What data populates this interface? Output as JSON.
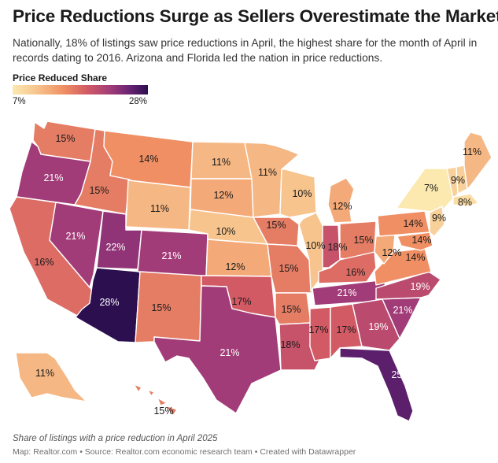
{
  "title": "Price Reductions Surge as Sellers Overestimate the Market",
  "subtitle": "Nationally, 18% of listings saw price reductions in April, the highest share for the month of April in records dating to 2016. Arizona and Florida led the nation in price reductions.",
  "legend": {
    "title": "Price Reduced Share",
    "min_label": "7%",
    "max_label": "28%",
    "min": 7,
    "max": 28
  },
  "states": [
    {
      "name": "WA",
      "label": "15%",
      "value": 15
    },
    {
      "name": "OR",
      "label": "21%",
      "value": 21
    },
    {
      "name": "CA",
      "label": "16%",
      "value": 16
    },
    {
      "name": "ID",
      "label": "15%",
      "value": 15
    },
    {
      "name": "NV",
      "label": "21%",
      "value": 21
    },
    {
      "name": "UT",
      "label": "22%",
      "value": 22
    },
    {
      "name": "AZ",
      "label": "28%",
      "value": 28
    },
    {
      "name": "MT",
      "label": "14%",
      "value": 14
    },
    {
      "name": "WY",
      "label": "11%",
      "value": 11
    },
    {
      "name": "CO",
      "label": "21%",
      "value": 21
    },
    {
      "name": "NM",
      "label": "15%",
      "value": 15
    },
    {
      "name": "ND",
      "label": "11%",
      "value": 11
    },
    {
      "name": "SD",
      "label": "12%",
      "value": 12
    },
    {
      "name": "NE",
      "label": "10%",
      "value": 10
    },
    {
      "name": "KS",
      "label": "12%",
      "value": 12
    },
    {
      "name": "OK",
      "label": "17%",
      "value": 17
    },
    {
      "name": "TX",
      "label": "21%",
      "value": 21
    },
    {
      "name": "MN",
      "label": "11%",
      "value": 11
    },
    {
      "name": "IA",
      "label": "15%",
      "value": 15
    },
    {
      "name": "MO",
      "label": "15%",
      "value": 15
    },
    {
      "name": "AR",
      "label": "15%",
      "value": 15
    },
    {
      "name": "LA",
      "label": "18%",
      "value": 18
    },
    {
      "name": "WI",
      "label": "10%",
      "value": 10
    },
    {
      "name": "IL",
      "label": "10%",
      "value": 10
    },
    {
      "name": "MI",
      "label": "12%",
      "value": 12
    },
    {
      "name": "IN",
      "label": "18%",
      "value": 18
    },
    {
      "name": "OH",
      "label": "15%",
      "value": 15
    },
    {
      "name": "KY",
      "label": "16%",
      "value": 16
    },
    {
      "name": "TN",
      "label": "21%",
      "value": 21
    },
    {
      "name": "MS",
      "label": "17%",
      "value": 17
    },
    {
      "name": "AL",
      "label": "17%",
      "value": 17
    },
    {
      "name": "GA",
      "label": "19%",
      "value": 19
    },
    {
      "name": "FL",
      "label": "25%",
      "value": 25
    },
    {
      "name": "SC",
      "label": "21%",
      "value": 21
    },
    {
      "name": "NC",
      "label": "19%",
      "value": 19
    },
    {
      "name": "VA",
      "label": "14%",
      "value": 14
    },
    {
      "name": "WV",
      "label": "12%",
      "value": 12
    },
    {
      "name": "PA",
      "label": "14%",
      "value": 14
    },
    {
      "name": "MD",
      "label": "14%",
      "value": 14
    },
    {
      "name": "NY",
      "label": "7%",
      "value": 7
    },
    {
      "name": "VT",
      "label": "9%",
      "value": 9
    },
    {
      "name": "NH",
      "label": "",
      "value": 9
    },
    {
      "name": "ME",
      "label": "11%",
      "value": 11
    },
    {
      "name": "MA",
      "label": "8%",
      "value": 8
    },
    {
      "name": "NJ",
      "label": "9%",
      "value": 9
    },
    {
      "name": "AK",
      "label": "11%",
      "value": 11
    },
    {
      "name": "HI",
      "label": "15%",
      "value": 15
    }
  ],
  "note": "Share of listings with a price reduction in April 2025",
  "source": "Map: Realtor.com • Source: Realtor.com economic research team • Created with Datawrapper"
}
